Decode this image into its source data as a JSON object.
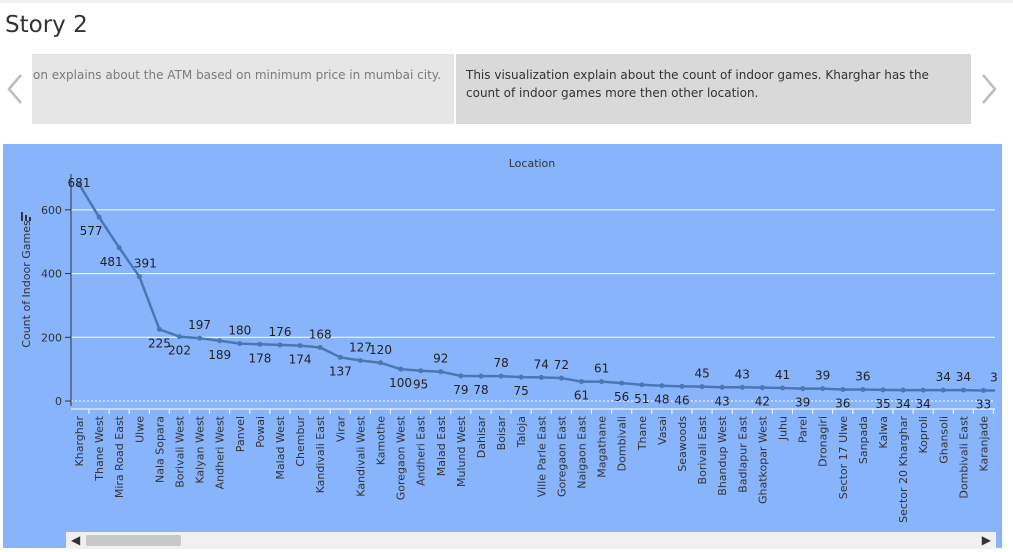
{
  "story": {
    "title": "Story 2"
  },
  "captions": {
    "previous": "on explains about the ATM based on minimum price in mumbai city.",
    "current": "This visualization explain about the count of indoor games. Kharghar has the count of indoor games more then other location."
  },
  "icons": {
    "prev": "chevron-left-icon",
    "next": "chevron-right-icon",
    "scroll_left": "caret-left-icon",
    "scroll_right": "caret-right-icon",
    "chart": "bar-chart-icon"
  },
  "colors": {
    "plot_bg": "#88b4fc",
    "line": "#4a77b4",
    "caption_current_bg": "#d9d9d9",
    "caption_prev_bg": "#e6e6e6"
  },
  "chart_data": {
    "type": "line",
    "title": "Location",
    "xlabel": "",
    "ylabel": "Count of Indoor Games",
    "ylim": [
      0,
      700
    ],
    "yticks": [
      0,
      200,
      400,
      600
    ],
    "grid": true,
    "categories": [
      "Kharghar",
      "Thane West",
      "Mira Road East",
      "Ulwe",
      "Nala Sopara",
      "Borivali West",
      "Kalyan West",
      "Andheri West",
      "Panvel",
      "Powai",
      "Malad West",
      "Chembur",
      "Kandivali East",
      "Virar",
      "Kandivali West",
      "Kamothe",
      "Goregaon West",
      "Andheri East",
      "Malad East",
      "Mulund West",
      "Dahisar",
      "Boisar",
      "Taloja",
      "Ville Parle East",
      "Goregaon East",
      "Naigaon East",
      "Magathane",
      "Dombivali",
      "Thane",
      "Vasai",
      "Seawoods",
      "Borivali East",
      "Bhandup West",
      "Badlapur East",
      "Ghatkopar West",
      "Juhu",
      "Parel",
      "Dronagiri",
      "Sector 17 Ulwe",
      "Sanpada",
      "Kalwa",
      "Sector 20 Kharghar",
      "Koproli",
      "Ghansoli",
      "Dombivali East",
      "Karanjade"
    ],
    "values": [
      681,
      577,
      481,
      391,
      225,
      202,
      197,
      189,
      180,
      178,
      176,
      174,
      168,
      137,
      127,
      120,
      100,
      95,
      92,
      79,
      78,
      78,
      75,
      74,
      72,
      61,
      61,
      56,
      51,
      48,
      46,
      45,
      43,
      43,
      42,
      41,
      39,
      39,
      36,
      36,
      35,
      34,
      34,
      34,
      34,
      33
    ],
    "data_labels": [
      "681",
      "577",
      "481",
      "391",
      "225",
      "202",
      "197",
      "189",
      "180",
      "178",
      "176",
      "174",
      "168",
      "137",
      "127",
      "120",
      "100",
      "95",
      "92",
      "79",
      "78",
      "78",
      "75",
      "74",
      "72",
      "61",
      "61",
      "56",
      "51",
      "48",
      "46",
      "45",
      "43",
      "43",
      "42",
      "41",
      "39",
      "39",
      "36",
      "36",
      "35",
      "34",
      "34",
      "34",
      "34",
      "33"
    ],
    "extra_label": "3"
  }
}
